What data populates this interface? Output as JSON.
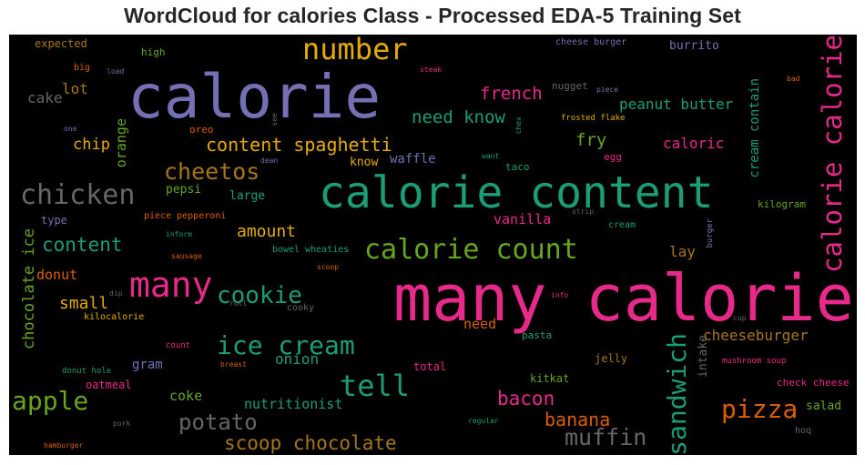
{
  "chart_data": {
    "type": "wordcloud",
    "title": "WordCloud for calories Class - Processed EDA-5 Training Set",
    "background": "#000000",
    "palette": [
      "#1b9e77",
      "#d95f02",
      "#7570b3",
      "#e7298a",
      "#66a61e",
      "#e6ab02",
      "#a6761d",
      "#666666"
    ],
    "words": [
      {
        "text": "many calorie",
        "color": "#e7298a",
        "orient": "h"
      },
      {
        "text": "calorie",
        "color": "#7570b3",
        "orient": "h"
      },
      {
        "text": "calorie content",
        "color": "#1b9e77",
        "orient": "h"
      },
      {
        "text": "calorie calorie",
        "color": "#e7298a",
        "orient": "v"
      },
      {
        "text": "number",
        "color": "#e6ab02",
        "orient": "h"
      },
      {
        "text": "many",
        "color": "#e7298a",
        "orient": "h"
      },
      {
        "text": "chicken",
        "color": "#666666",
        "orient": "h"
      },
      {
        "text": "calorie count",
        "color": "#66a61e",
        "orient": "h"
      },
      {
        "text": "ice cream",
        "color": "#1b9e77",
        "orient": "h"
      },
      {
        "text": "apple",
        "color": "#66a61e",
        "orient": "h"
      },
      {
        "text": "tell",
        "color": "#1b9e77",
        "orient": "h"
      },
      {
        "text": "cookie",
        "color": "#1b9e77",
        "orient": "h"
      },
      {
        "text": "sandwich",
        "color": "#1b9e77",
        "orient": "v"
      },
      {
        "text": "pizza",
        "color": "#d95f02",
        "orient": "h"
      },
      {
        "text": "cheetos",
        "color": "#a6761d",
        "orient": "h"
      },
      {
        "text": "potato",
        "color": "#666666",
        "orient": "h"
      },
      {
        "text": "muffin",
        "color": "#666666",
        "orient": "h"
      },
      {
        "text": "content spaghetti",
        "color": "#e6ab02",
        "orient": "h"
      },
      {
        "text": "scoop chocolate",
        "color": "#a6761d",
        "orient": "h"
      },
      {
        "text": "content",
        "color": "#1b9e77",
        "orient": "h"
      },
      {
        "text": "bacon",
        "color": "#e7298a",
        "orient": "h"
      },
      {
        "text": "banana",
        "color": "#d95f02",
        "orient": "h"
      },
      {
        "text": "need know",
        "color": "#1b9e77",
        "orient": "h"
      },
      {
        "text": "french",
        "color": "#e7298a",
        "orient": "h"
      },
      {
        "text": "fry",
        "color": "#66a61e",
        "orient": "h"
      },
      {
        "text": "amount",
        "color": "#e6ab02",
        "orient": "h"
      },
      {
        "text": "peanut butter",
        "color": "#1b9e77",
        "orient": "h"
      },
      {
        "text": "cheeseburger",
        "color": "#a6761d",
        "orient": "h"
      },
      {
        "text": "chocolate ice",
        "color": "#66a61e",
        "orient": "v"
      },
      {
        "text": "small",
        "color": "#e6ab02",
        "orient": "h"
      },
      {
        "text": "chip",
        "color": "#e6ab02",
        "orient": "h"
      },
      {
        "text": "caloric",
        "color": "#e7298a",
        "orient": "h"
      },
      {
        "text": "cream contain",
        "color": "#1b9e77",
        "orient": "v"
      },
      {
        "text": "onion",
        "color": "#1b9e77",
        "orient": "h"
      },
      {
        "text": "nutritionist",
        "color": "#1b9e77",
        "orient": "h"
      },
      {
        "text": "coke",
        "color": "#66a61e",
        "orient": "h"
      },
      {
        "text": "vanilla",
        "color": "#e7298a",
        "orient": "h"
      },
      {
        "text": "orange",
        "color": "#66a61e",
        "orient": "v"
      },
      {
        "text": "lot",
        "color": "#a6761d",
        "orient": "h"
      },
      {
        "text": "cake",
        "color": "#666666",
        "orient": "h"
      },
      {
        "text": "lay",
        "color": "#a6761d",
        "orient": "h"
      },
      {
        "text": "need",
        "color": "#d95f02",
        "orient": "h"
      },
      {
        "text": "intake",
        "color": "#666666",
        "orient": "v"
      },
      {
        "text": "donut",
        "color": "#d95f02",
        "orient": "h"
      },
      {
        "text": "waffle",
        "color": "#7570b3",
        "orient": "h"
      },
      {
        "text": "large",
        "color": "#1b9e77",
        "orient": "h"
      },
      {
        "text": "pepsi",
        "color": "#66a61e",
        "orient": "h"
      },
      {
        "text": "know",
        "color": "#e6ab02",
        "orient": "h"
      },
      {
        "text": "gram",
        "color": "#7570b3",
        "orient": "h"
      },
      {
        "text": "salad",
        "color": "#66a61e",
        "orient": "h"
      },
      {
        "text": "burrito",
        "color": "#7570b3",
        "orient": "h"
      },
      {
        "text": "expected",
        "color": "#a6761d",
        "orient": "h"
      },
      {
        "text": "type",
        "color": "#7570b3",
        "orient": "h"
      },
      {
        "text": "kitkat",
        "color": "#66a61e",
        "orient": "h"
      },
      {
        "text": "jelly",
        "color": "#a6761d",
        "orient": "h"
      },
      {
        "text": "total",
        "color": "#e7298a",
        "orient": "h"
      },
      {
        "text": "oatmeal",
        "color": "#e7298a",
        "orient": "h"
      },
      {
        "text": "kilogram",
        "color": "#66a61e",
        "orient": "h"
      },
      {
        "text": "check cheese",
        "color": "#e7298a",
        "orient": "h"
      },
      {
        "text": "cheese burger",
        "color": "#7570b3",
        "orient": "h"
      },
      {
        "text": "taco",
        "color": "#1b9e77",
        "orient": "h"
      },
      {
        "text": "egg",
        "color": "#e7298a",
        "orient": "h"
      },
      {
        "text": "bowel wheaties",
        "color": "#1b9e77",
        "orient": "h"
      },
      {
        "text": "piece pepperoni",
        "color": "#d95f02",
        "orient": "h"
      },
      {
        "text": "pasta",
        "color": "#1b9e77",
        "orient": "h"
      },
      {
        "text": "oreo",
        "color": "#d95f02",
        "orient": "h"
      },
      {
        "text": "high",
        "color": "#66a61e",
        "orient": "h"
      },
      {
        "text": "nugget",
        "color": "#666666",
        "orient": "h"
      },
      {
        "text": "cream",
        "color": "#1b9e77",
        "orient": "h"
      },
      {
        "text": "kilocalorie",
        "color": "#e6ab02",
        "orient": "h"
      },
      {
        "text": "cooky",
        "color": "#666666",
        "orient": "h"
      },
      {
        "text": "big",
        "color": "#d95f02",
        "orient": "h"
      },
      {
        "text": "count",
        "color": "#e7298a",
        "orient": "h"
      },
      {
        "text": "donut hole",
        "color": "#1b9e77",
        "orient": "h"
      },
      {
        "text": "mushroom soup",
        "color": "#e7298a",
        "orient": "h"
      },
      {
        "text": "hoq",
        "color": "#666666",
        "orient": "h"
      },
      {
        "text": "burger",
        "color": "#7570b3",
        "orient": "v"
      },
      {
        "text": "frosted flake",
        "color": "#e6ab02",
        "orient": "h"
      },
      {
        "text": "dean",
        "color": "#7570b3",
        "orient": "h"
      },
      {
        "text": "piece",
        "color": "#7570b3",
        "orient": "h"
      },
      {
        "text": "strip",
        "color": "#666666",
        "orient": "h"
      },
      {
        "text": "want",
        "color": "#1b9e77",
        "orient": "h"
      },
      {
        "text": "chex",
        "color": "#1b9e77",
        "orient": "v"
      },
      {
        "text": "see",
        "color": "#666666",
        "orient": "v"
      },
      {
        "text": "steak",
        "color": "#e7298a",
        "orient": "h"
      },
      {
        "text": "bad",
        "color": "#d95f02",
        "orient": "h"
      },
      {
        "text": "load",
        "color": "#7570b3",
        "orient": "h"
      },
      {
        "text": "one",
        "color": "#7570b3",
        "orient": "h"
      },
      {
        "text": "inform",
        "color": "#1b9e77",
        "orient": "h"
      },
      {
        "text": "sausage",
        "color": "#d95f02",
        "orient": "h"
      },
      {
        "text": "scoop",
        "color": "#d95f02",
        "orient": "h"
      },
      {
        "text": "roll",
        "color": "#666666",
        "orient": "h"
      },
      {
        "text": "dip",
        "color": "#666666",
        "orient": "h"
      },
      {
        "text": "info",
        "color": "#e7298a",
        "orient": "h"
      },
      {
        "text": "cup",
        "color": "#666666",
        "orient": "h"
      },
      {
        "text": "breast",
        "color": "#d95f02",
        "orient": "h"
      },
      {
        "text": "pork",
        "color": "#666666",
        "orient": "h"
      },
      {
        "text": "regular",
        "color": "#1b9e77",
        "orient": "h"
      },
      {
        "text": "hamburger",
        "color": "#d95f02",
        "orient": "h"
      }
    ]
  }
}
